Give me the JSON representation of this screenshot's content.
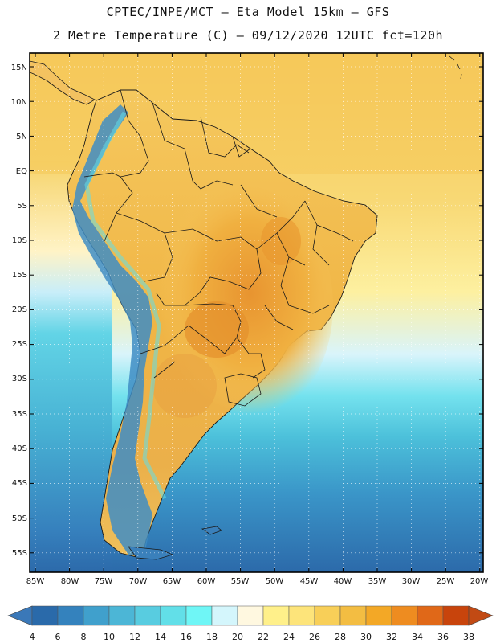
{
  "header": {
    "title_line1": "CPTEC/INPE/MCT –  Eta Model 15km – GFS",
    "title_line2": "2 Metre Temperature (C) – 09/12/2020 12UTC fct=120h"
  },
  "map": {
    "lat_labels": [
      "15N",
      "10N",
      "5N",
      "EQ",
      "5S",
      "10S",
      "15S",
      "20S",
      "25S",
      "30S",
      "35S",
      "40S",
      "45S",
      "50S",
      "55S"
    ],
    "lon_labels": [
      "85W",
      "80W",
      "75W",
      "70W",
      "65W",
      "60W",
      "55W",
      "50W",
      "45W",
      "40W",
      "35W",
      "30W",
      "25W",
      "20W"
    ],
    "colors": {
      "land_hot": "#eaa43a",
      "land_warm": "#f5c45a",
      "ocean_warm": "#f7d873",
      "andes_cold": "#3c88c0",
      "border": "#1a1a1a"
    }
  },
  "colorbar": {
    "labels": [
      "4",
      "6",
      "8",
      "10",
      "12",
      "14",
      "16",
      "18",
      "20",
      "22",
      "24",
      "26",
      "28",
      "30",
      "32",
      "34",
      "36",
      "38"
    ],
    "colors": [
      "#2a6aaa",
      "#3482bd",
      "#40a0cc",
      "#4cb6d6",
      "#58cce0",
      "#62dfe8",
      "#6ff6f6",
      "#d4f6fc",
      "#fff8e0",
      "#fff08a",
      "#fde47a",
      "#f8cf58",
      "#f3bd42",
      "#f3a826",
      "#ee8c20",
      "#e06818",
      "#c8440c"
    ],
    "under_color": "#3a78b8",
    "over_color": "#c24a14"
  }
}
